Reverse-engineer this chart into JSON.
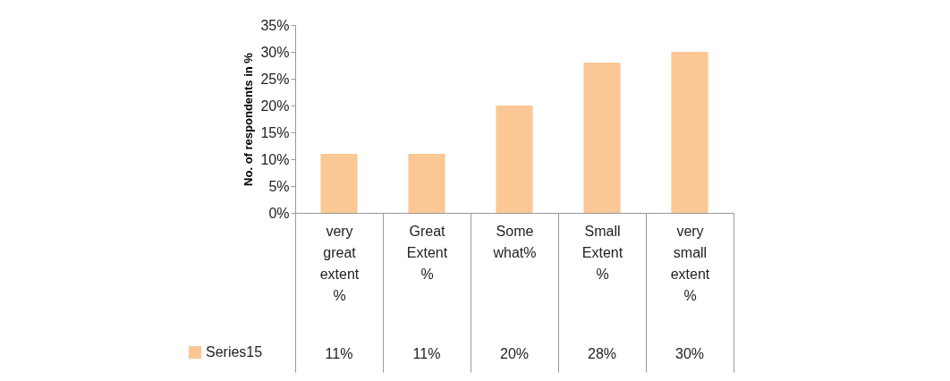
{
  "chart_data": {
    "type": "bar",
    "ylabel": "No. of respondents in %",
    "categories": [
      "very great extent %",
      "Great Extent %",
      "Some what%",
      "Small Extent %",
      "very small extent %"
    ],
    "series": [
      {
        "name": "Series15",
        "color": "#fac795",
        "values": [
          11,
          11,
          20,
          28,
          30
        ],
        "value_labels": [
          "11%",
          "11%",
          "20%",
          "28%",
          "30%"
        ]
      }
    ],
    "ylim": [
      0,
      35
    ],
    "yticks": [
      {
        "value": 0,
        "label": "0%"
      },
      {
        "value": 5,
        "label": "5%"
      },
      {
        "value": 10,
        "label": "10%"
      },
      {
        "value": 15,
        "label": "15%"
      },
      {
        "value": 20,
        "label": "20%"
      },
      {
        "value": 25,
        "label": "25%"
      },
      {
        "value": 30,
        "label": "30%"
      },
      {
        "value": 35,
        "label": "35%"
      }
    ],
    "grid": false,
    "legend": "bottom left"
  }
}
